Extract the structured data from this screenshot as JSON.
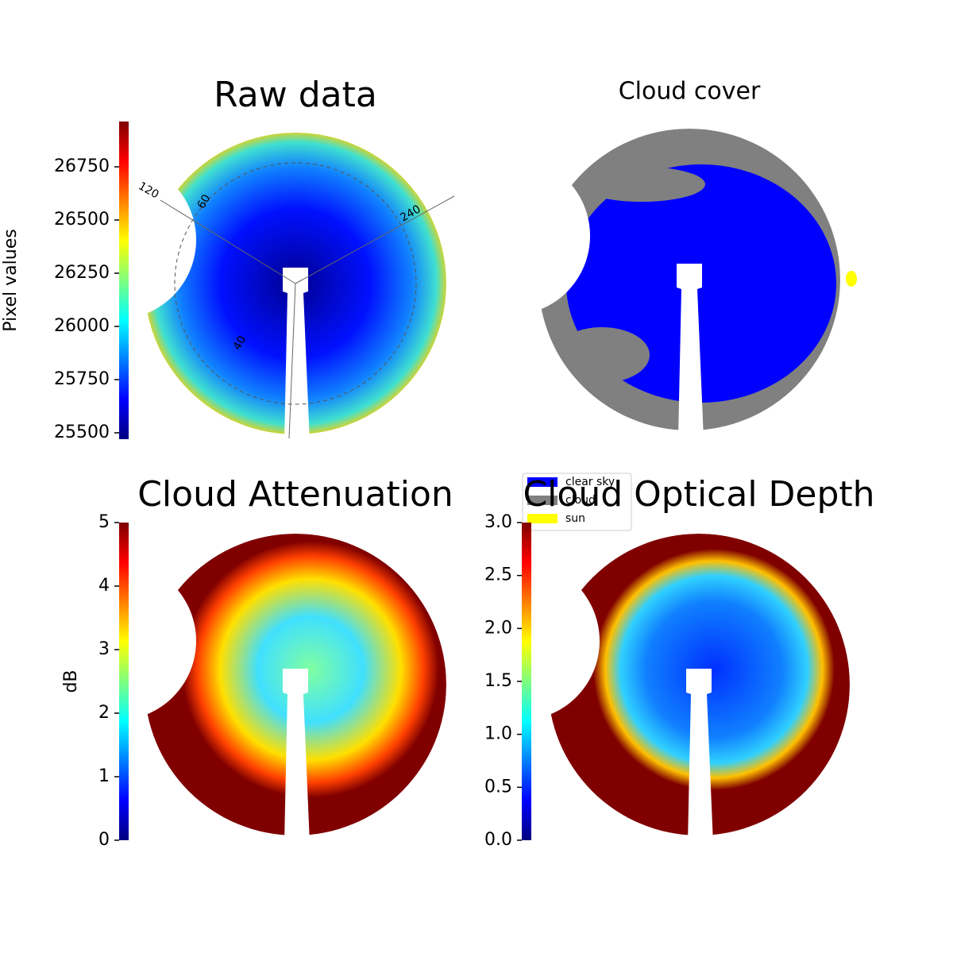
{
  "chart_data": [
    {
      "type": "image",
      "title": "Raw data",
      "ylabel": "Pixel values",
      "colormap": "jet",
      "ylim": [
        25470,
        26963
      ],
      "yticks": [
        25500,
        25750,
        26000,
        26250,
        26500,
        26750
      ],
      "annotations": [
        "120",
        "60",
        "240",
        "40"
      ]
    },
    {
      "type": "image",
      "title": "Cloud cover",
      "legend": [
        {
          "name": "clear sky",
          "color": "#0000ff"
        },
        {
          "name": "cloud",
          "color": "#808080"
        },
        {
          "name": "sun",
          "color": "#ffff00"
        }
      ]
    },
    {
      "type": "image",
      "title": "Cloud Attenuation",
      "ylabel": "dB",
      "colormap": "jet",
      "ylim": [
        0,
        5
      ],
      "yticks": [
        0,
        1,
        2,
        3,
        4,
        5
      ]
    },
    {
      "type": "image",
      "title": "Cloud Optical Depth",
      "colormap": "jet",
      "ylim": [
        0,
        3
      ],
      "yticks": [
        {
          "value": 0,
          "label": "0.0"
        },
        {
          "value": 0.5,
          "label": "0.5"
        },
        {
          "value": 1,
          "label": "1.0"
        },
        {
          "value": 1.5,
          "label": "1.5"
        },
        {
          "value": 2,
          "label": "2.0"
        },
        {
          "value": 2.5,
          "label": "2.5"
        },
        {
          "value": 3,
          "label": "3.0"
        }
      ]
    }
  ]
}
